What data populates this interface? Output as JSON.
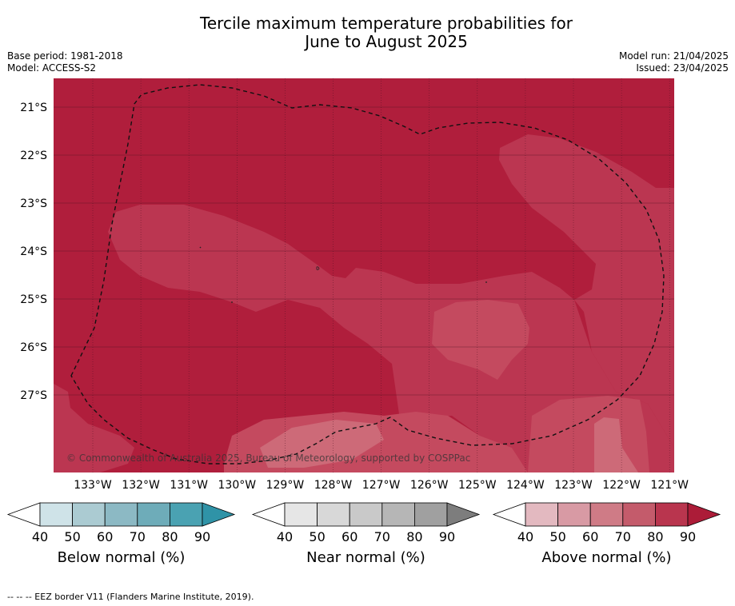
{
  "title_line1": "Tercile maximum temperature probabilities for",
  "title_line2": "June to August 2025",
  "meta_left": [
    "Base period: 1981-2018",
    "Model: ACCESS-S2"
  ],
  "meta_right": [
    "Model run: 21/04/2025",
    "Issued: 23/04/2025"
  ],
  "copyright": "© Commonwealth of Australia 2025, Bureau of Meteorology, supported by COSPPac",
  "map": {
    "lat_labels": [
      "21°S",
      "22°S",
      "23°S",
      "24°S",
      "25°S",
      "26°S",
      "27°S"
    ],
    "lon_labels": [
      "133°W",
      "132°W",
      "131°W",
      "130°W",
      "129°W",
      "128°W",
      "127°W",
      "126°W",
      "125°W",
      "124°W",
      "123°W",
      "122°W",
      "121°W"
    ],
    "colors": {
      "above_90": "#b01e3c",
      "above_80": "#bb3651",
      "above_70": "#c44a5f",
      "above_60": "#cd6a78",
      "border": "#111111"
    }
  },
  "colorbars": [
    {
      "title": "Below normal (%)",
      "ticks": [
        "40",
        "50",
        "60",
        "70",
        "80",
        "90"
      ],
      "colors": [
        "#cfe3e8",
        "#abcbd2",
        "#8cb9c4",
        "#6eacb9",
        "#4aa2b2",
        "#2f93a7"
      ]
    },
    {
      "title": "Near normal (%)",
      "ticks": [
        "40",
        "50",
        "60",
        "70",
        "80",
        "90"
      ],
      "colors": [
        "#e6e6e6",
        "#d8d8d8",
        "#c9c9c9",
        "#b6b6b6",
        "#a0a0a0",
        "#7d7d7d"
      ]
    },
    {
      "title": "Above normal (%)",
      "ticks": [
        "40",
        "50",
        "60",
        "70",
        "80",
        "90"
      ],
      "colors": [
        "#e3b9c0",
        "#d89aa4",
        "#cf7b86",
        "#c45b6b",
        "#b9354e",
        "#ac1c38"
      ]
    }
  ],
  "footer": "--  --  -- EEZ border V11 (Flanders Marine Institute, 2019)."
}
